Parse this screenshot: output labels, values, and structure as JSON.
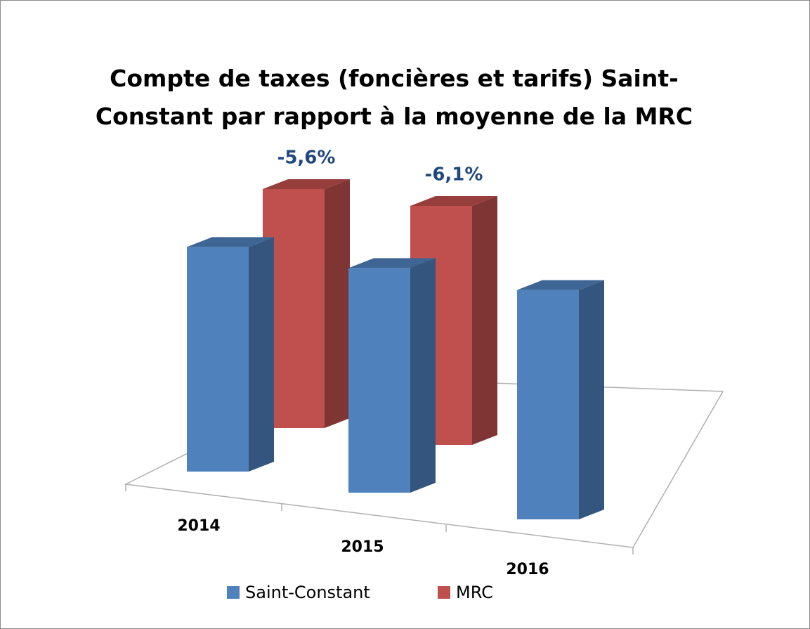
{
  "chart_data": {
    "type": "bar3d",
    "title": "Compte de taxes (foncières et tarifs) Saint-Constant par rapport à la moyenne de la  MRC",
    "categories": [
      "2014",
      "2015",
      "2016"
    ],
    "series": [
      {
        "name": "Saint-Constant",
        "color": "#4f81bd",
        "values": [
          94,
          94,
          96
        ]
      },
      {
        "name": "MRC",
        "color": "#c0504d",
        "values": [
          100,
          100,
          null
        ]
      }
    ],
    "annotations": [
      "-5,6%",
      "-6,1%"
    ],
    "ylim": [
      0,
      100
    ],
    "legend": "bottom"
  }
}
